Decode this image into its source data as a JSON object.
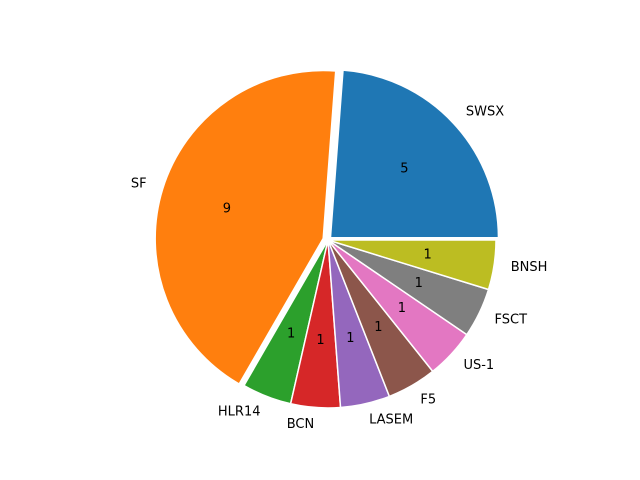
{
  "chart_data": {
    "type": "pie",
    "categories": [
      "SWSX",
      "SF",
      "HLR14",
      "BCN",
      "LASEM",
      "F5",
      "US-1",
      "FSCT",
      "BNSH"
    ],
    "values": [
      5,
      9,
      1,
      1,
      1,
      1,
      1,
      1,
      1
    ],
    "colors": [
      "#1f77b4",
      "#ff7f0e",
      "#2ca02c",
      "#d62728",
      "#9467bd",
      "#8c564b",
      "#e377c2",
      "#7f7f7f",
      "#bcbd22"
    ],
    "explode": [
      0.02,
      0.03,
      0,
      0,
      0,
      0,
      0,
      0,
      0
    ],
    "start_angle": 0
  }
}
